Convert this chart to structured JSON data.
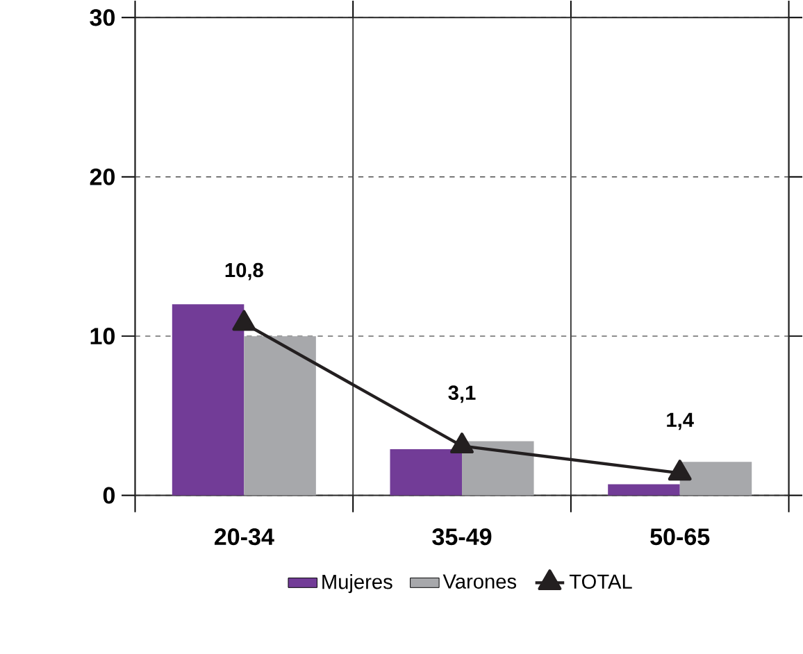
{
  "chart_data": {
    "type": "bar",
    "categories": [
      "20-34",
      "35-49",
      "50-65"
    ],
    "series": [
      {
        "name": "Mujeres",
        "color": "#723c97",
        "values": [
          12.0,
          2.9,
          0.7
        ]
      },
      {
        "name": "Varones",
        "color": "#a7a8ab",
        "values": [
          10.0,
          3.4,
          2.1
        ]
      },
      {
        "name": "TOTAL",
        "type": "line",
        "color": "#231f20",
        "marker": "triangle",
        "values": [
          10.8,
          3.1,
          1.4
        ],
        "value_labels": [
          "10,8",
          "3,1",
          "1,4"
        ]
      }
    ],
    "ylim": [
      0,
      30
    ],
    "yticks": [
      0,
      10,
      20,
      30
    ],
    "grid": true,
    "legend": "bottom"
  }
}
